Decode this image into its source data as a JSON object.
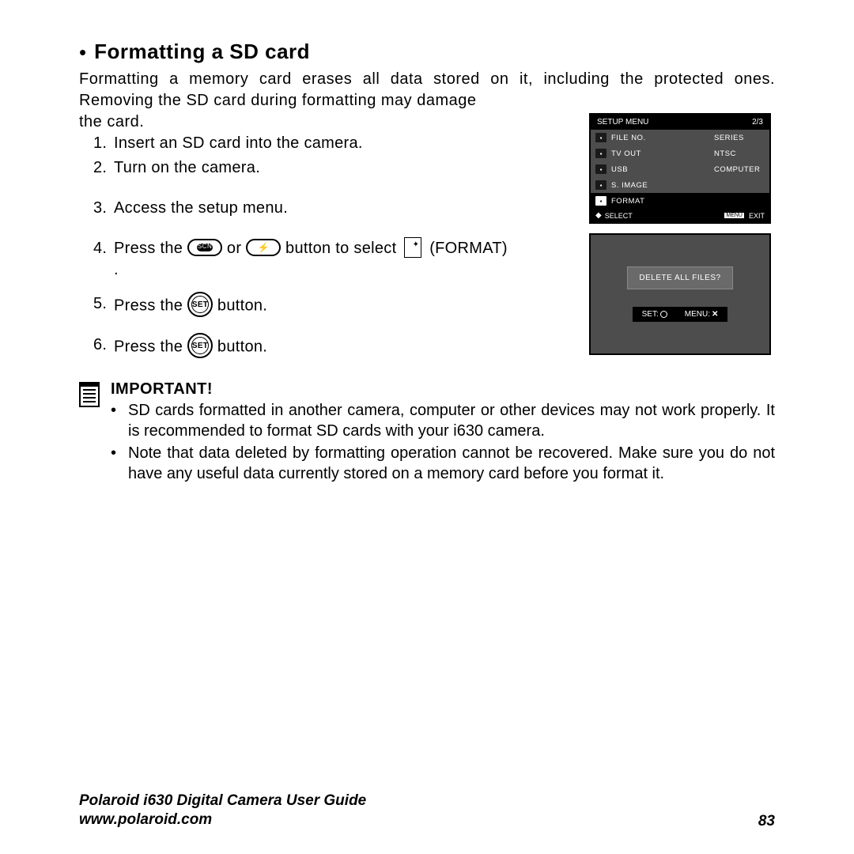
{
  "title": "Formatting a SD card",
  "intro_lines": [
    "Formatting a memory card erases all data stored on it, including the",
    "protected ones. Removing the SD card during formatting may damage"
  ],
  "intro_tail": "the card.",
  "steps": {
    "s1": "Insert an SD card into the camera.",
    "s2": "Turn on the camera.",
    "s3": "Access the setup menu.",
    "s4_a": "Press the",
    "s4_or": "or",
    "s4_b": "button to select",
    "s4_c": "(FORMAT)",
    "s4_dot": ".",
    "s5_a": "Press the",
    "s5_b": "button.",
    "s6_a": "Press the",
    "s6_b": "button."
  },
  "lcd1": {
    "header_left": "SETUP MENU",
    "header_right": "2/3",
    "rows": [
      {
        "icon": "file",
        "label": "FILE NO.",
        "value": "SERIES"
      },
      {
        "icon": "tv",
        "label": "TV OUT",
        "value": "NTSC"
      },
      {
        "icon": "usb",
        "label": "USB",
        "value": "COMPUTER"
      },
      {
        "icon": "img",
        "label": "S. IMAGE",
        "value": ""
      },
      {
        "icon": "fmt",
        "label": "FORMAT",
        "value": "",
        "selected": true
      }
    ],
    "foot_select": "SELECT",
    "foot_menu": "MENU",
    "foot_exit": "EXIT"
  },
  "lcd2": {
    "dialog": "DELETE ALL FILES?",
    "set_label": "SET:",
    "menu_label": "MENU:"
  },
  "important": {
    "title": "IMPORTANT!",
    "items": [
      "SD cards formatted in another camera, computer or other devices may not work properly. It is recommended to format SD cards with your i630 camera.",
      "Note that data deleted by formatting operation cannot be recovered. Make sure you do not have any useful data currently stored on a memory card before you format it."
    ]
  },
  "footer": {
    "guide": "Polaroid i630 Digital Camera User Guide",
    "url": "www.polaroid.com",
    "page": "83"
  },
  "icon_text": {
    "scn": "SCN",
    "set": "SET"
  }
}
